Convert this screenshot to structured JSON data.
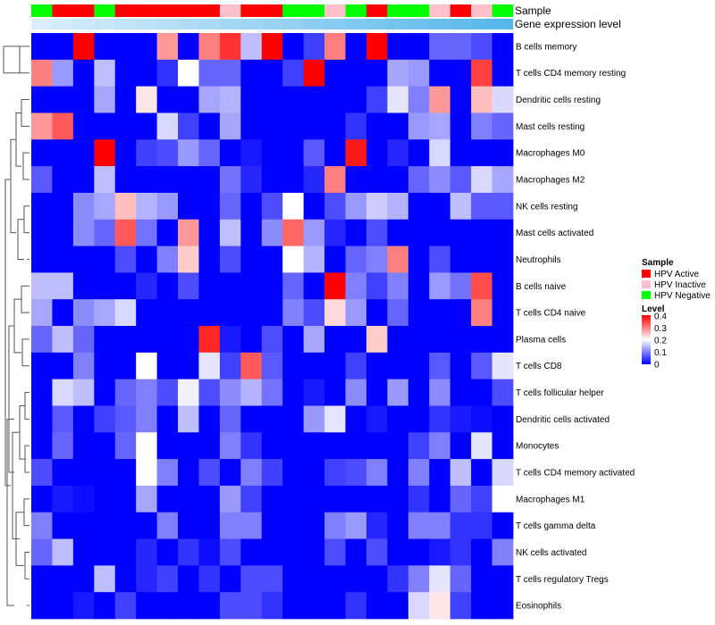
{
  "colors": {
    "hpv_active": "#ff0000",
    "hpv_inactive": "#ffc0cb",
    "hpv_negative": "#00ff00",
    "gene_expr_light": "#d9eefa",
    "gene_expr_dark": "#56b8ea",
    "scale_low": "#0000ff",
    "scale_mid": "#ffffff",
    "scale_high": "#ff0000"
  },
  "annotations": {
    "sample_label": "Sample",
    "gene_label": "Gene expression level",
    "sample_groups": [
      "negative",
      "active",
      "active",
      "negative",
      "active",
      "active",
      "active",
      "active",
      "active",
      "inactive",
      "active",
      "active",
      "negative",
      "negative",
      "inactive",
      "negative",
      "active",
      "negative",
      "negative",
      "inactive",
      "active",
      "inactive",
      "negative"
    ]
  },
  "legend": {
    "sample_title": "Sample",
    "sample_items": [
      {
        "label": "HPV Active",
        "key": "hpv_active"
      },
      {
        "label": "HPV Inactive",
        "key": "hpv_inactive"
      },
      {
        "label": "HPV Negative",
        "key": "hpv_negative"
      }
    ],
    "level_title": "Level",
    "level_ticks": [
      "0.4",
      "0.3",
      "0.2",
      "0.1",
      "0"
    ]
  },
  "chart_data": {
    "type": "heatmap",
    "title": "",
    "value_range": [
      0,
      0.4
    ],
    "rows": [
      "B cells memory",
      "T cells CD4 memory resting",
      "Dendritic cells resting",
      "Mast cells resting",
      "Macrophages M0",
      "Macrophages M2",
      "NK cells resting",
      "Mast cells activated",
      "Neutrophils",
      "B cells naive",
      "T cells CD4 naive",
      "Plasma cells",
      "T cells CD8",
      "T cells follicular helper",
      "Dendritic cells activated",
      "Monocytes",
      "T cells CD4 memory activated",
      "Macrophages M1",
      "T cells gamma delta",
      "NK cells activated",
      "T cells regulatory  Tregs",
      "Eosinophils"
    ],
    "columns": 23,
    "values": [
      [
        0,
        0,
        0.4,
        0,
        0,
        0,
        0.28,
        0,
        0.3,
        0.36,
        0.15,
        0.4,
        0,
        0.05,
        0.3,
        0,
        0.4,
        0,
        0,
        0.08,
        0.08,
        0.06,
        0
      ],
      [
        0.3,
        0.12,
        0,
        0.15,
        0,
        0,
        0.04,
        0.2,
        0.08,
        0.08,
        0,
        0,
        0.05,
        0.4,
        0,
        0,
        0,
        0.13,
        0.12,
        0,
        0,
        0.35,
        0
      ],
      [
        0,
        0,
        0,
        0.13,
        0,
        0.22,
        0,
        0,
        0.13,
        0.14,
        0,
        0,
        0,
        0,
        0,
        0,
        0.05,
        0.18,
        0.1,
        0.28,
        0,
        0.25,
        0.17
      ],
      [
        0.28,
        0.33,
        0,
        0,
        0,
        0,
        0.17,
        0.05,
        0,
        0.13,
        0,
        0,
        0,
        0,
        0,
        0.04,
        0,
        0,
        0.12,
        0.13,
        0,
        0.1,
        0.08
      ],
      [
        0,
        0,
        0,
        0.4,
        0,
        0.05,
        0.06,
        0.12,
        0.08,
        0,
        0.02,
        0,
        0,
        0.07,
        0,
        0.38,
        0,
        0.03,
        0,
        0.17,
        0,
        0,
        0
      ],
      [
        0.07,
        0,
        0,
        0.15,
        0,
        0,
        0,
        0,
        0,
        0.09,
        0.03,
        0,
        0,
        0.03,
        0.3,
        0,
        0,
        0,
        0.08,
        0.11,
        0.07,
        0.17,
        0.13
      ],
      [
        0,
        0,
        0.11,
        0.13,
        0.25,
        0.14,
        0.12,
        0,
        0,
        0.08,
        0,
        0.06,
        0.2,
        0,
        0.06,
        0.12,
        0.16,
        0.14,
        0,
        0,
        0.15,
        0.07,
        0.07
      ],
      [
        0,
        0,
        0.11,
        0.08,
        0.33,
        0.09,
        0,
        0.28,
        0,
        0.15,
        0,
        0.11,
        0.32,
        0.12,
        0.03,
        0,
        0.06,
        0,
        0,
        0,
        0,
        0,
        0
      ],
      [
        0,
        0,
        0,
        0,
        0.06,
        0,
        0.1,
        0.24,
        0,
        0.06,
        0,
        0,
        0.2,
        0.14,
        0,
        0.08,
        0.1,
        0.3,
        0,
        0.06,
        0,
        0,
        0
      ],
      [
        0.15,
        0.15,
        0,
        0,
        0,
        0.03,
        0,
        0.06,
        0,
        0,
        0,
        0,
        0.08,
        0,
        0.4,
        0.1,
        0.05,
        0.1,
        0,
        0.12,
        0.09,
        0.34,
        0
      ],
      [
        0.13,
        0,
        0.11,
        0.13,
        0.17,
        0,
        0,
        0,
        0,
        0,
        0,
        0,
        0.1,
        0.06,
        0.23,
        0.12,
        0,
        0.08,
        0,
        0,
        0,
        0.3,
        0
      ],
      [
        0.08,
        0.15,
        0.08,
        0,
        0,
        0,
        0,
        0,
        0.37,
        0.02,
        0,
        0.06,
        0,
        0.13,
        0,
        0,
        0.24,
        0,
        0,
        0,
        0,
        0,
        0
      ],
      [
        0,
        0,
        0.1,
        0,
        0,
        0.2,
        0,
        0,
        0.18,
        0.05,
        0.33,
        0.07,
        0,
        0,
        0,
        0.05,
        0,
        0,
        0,
        0.07,
        0,
        0.07,
        0.18
      ],
      [
        0,
        0.17,
        0.15,
        0,
        0.08,
        0.1,
        0.06,
        0.19,
        0.06,
        0.11,
        0.14,
        0.09,
        0,
        0.02,
        0,
        0.11,
        0,
        0.12,
        0,
        0.11,
        0,
        0,
        0.06
      ],
      [
        0,
        0.07,
        0,
        0.05,
        0.07,
        0.1,
        0,
        0.15,
        0,
        0.08,
        0,
        0,
        0,
        0.12,
        0.18,
        0,
        0.02,
        0,
        0,
        0.04,
        0.02,
        0.01,
        0
      ],
      [
        0,
        0.08,
        0,
        0,
        0.08,
        0.2,
        0,
        0,
        0,
        0.1,
        0.04,
        0,
        0,
        0,
        0,
        0,
        0,
        0,
        0.05,
        0.1,
        0,
        0.18,
        0
      ],
      [
        0.06,
        0,
        0,
        0,
        0,
        0.2,
        0.1,
        0,
        0.06,
        0,
        0.1,
        0.05,
        0,
        0,
        0.05,
        0.06,
        0.1,
        0,
        0.1,
        0,
        0.15,
        0,
        0.17
      ],
      [
        0,
        0.02,
        0.01,
        0,
        0,
        0.13,
        0,
        0,
        0,
        0.12,
        0.05,
        0,
        0,
        0,
        0,
        0,
        0,
        0,
        0.04,
        0,
        0.08,
        0.05,
        0.2
      ],
      [
        0.1,
        0,
        0,
        0,
        0,
        0,
        0.1,
        0,
        0,
        0.1,
        0.1,
        0,
        0,
        0,
        0.1,
        0.12,
        0.03,
        0,
        0.1,
        0.1,
        0.04,
        0.04,
        0
      ],
      [
        0.08,
        0.15,
        0,
        0,
        0,
        0.03,
        0,
        0.04,
        0.01,
        0.06,
        0,
        0,
        0,
        0,
        0.06,
        0,
        0.06,
        0,
        0,
        0.02,
        0.04,
        0,
        0.1
      ],
      [
        0,
        0,
        0,
        0.15,
        0,
        0.03,
        0.05,
        0,
        0.04,
        0,
        0.06,
        0.06,
        0,
        0,
        0,
        0,
        0,
        0.04,
        0.1,
        0.18,
        0.08,
        0,
        0
      ],
      [
        0,
        0,
        0.02,
        0,
        0.05,
        0,
        0,
        0,
        0,
        0.06,
        0.06,
        0.04,
        0,
        0,
        0,
        0.04,
        0,
        0,
        0.17,
        0.22,
        0.05,
        0,
        0
      ]
    ],
    "xlabel": "",
    "ylabel": "",
    "legend_position": "right"
  }
}
